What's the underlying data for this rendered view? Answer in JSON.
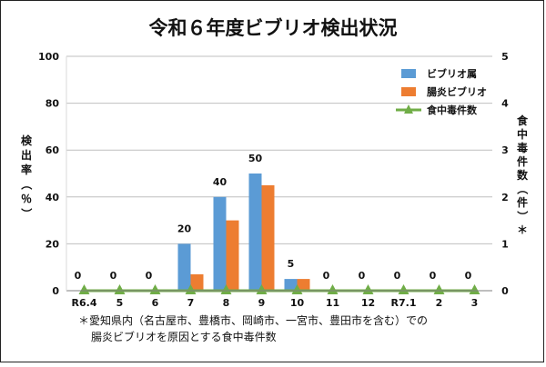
{
  "chart_data": {
    "type": "bar",
    "title": "令和６年度ビブリオ検出状況",
    "categories": [
      "R6.4",
      "5",
      "6",
      "7",
      "8",
      "9",
      "10",
      "11",
      "12",
      "R7.1",
      "2",
      "3"
    ],
    "series": [
      {
        "name": "ビブリオ属",
        "type": "bar",
        "axis": "left",
        "color": "#5b9bd5",
        "values": [
          0,
          0,
          0,
          20,
          40,
          50,
          5,
          0,
          0,
          0,
          0,
          0
        ]
      },
      {
        "name": "腸炎ビブリオ",
        "type": "bar",
        "axis": "left",
        "color": "#ed7d31",
        "values": [
          0,
          0,
          0,
          7,
          30,
          45,
          5,
          0,
          0,
          0,
          0,
          0
        ]
      },
      {
        "name": "食中毒件数",
        "type": "line",
        "axis": "right",
        "color": "#70ad47",
        "values": [
          0,
          0,
          0,
          0,
          0,
          0,
          0,
          0,
          0,
          0,
          0,
          0
        ]
      }
    ],
    "data_labels": [
      "0",
      "0",
      "0",
      "20",
      "40",
      "50",
      "5",
      "0",
      "0",
      "0",
      "0",
      "0"
    ],
    "y_left": {
      "label": "検出率（％）",
      "ylim": [
        0,
        100
      ],
      "ticks": [
        "0",
        "20",
        "40",
        "60",
        "80",
        "100"
      ]
    },
    "y_right": {
      "label": "食中毒件数（件）＊",
      "ylim": [
        0,
        5
      ],
      "ticks": [
        "0",
        "1",
        "2",
        "3",
        "4",
        "5"
      ]
    },
    "grid": true,
    "legend_position": "top-right"
  },
  "footnote": {
    "line1": "＊愛知県内（名古屋市、豊橋市、岡崎市、一宮市、豊田市を含む）での",
    "line2": "腸炎ビブリオを原因とする食中毒件数"
  }
}
